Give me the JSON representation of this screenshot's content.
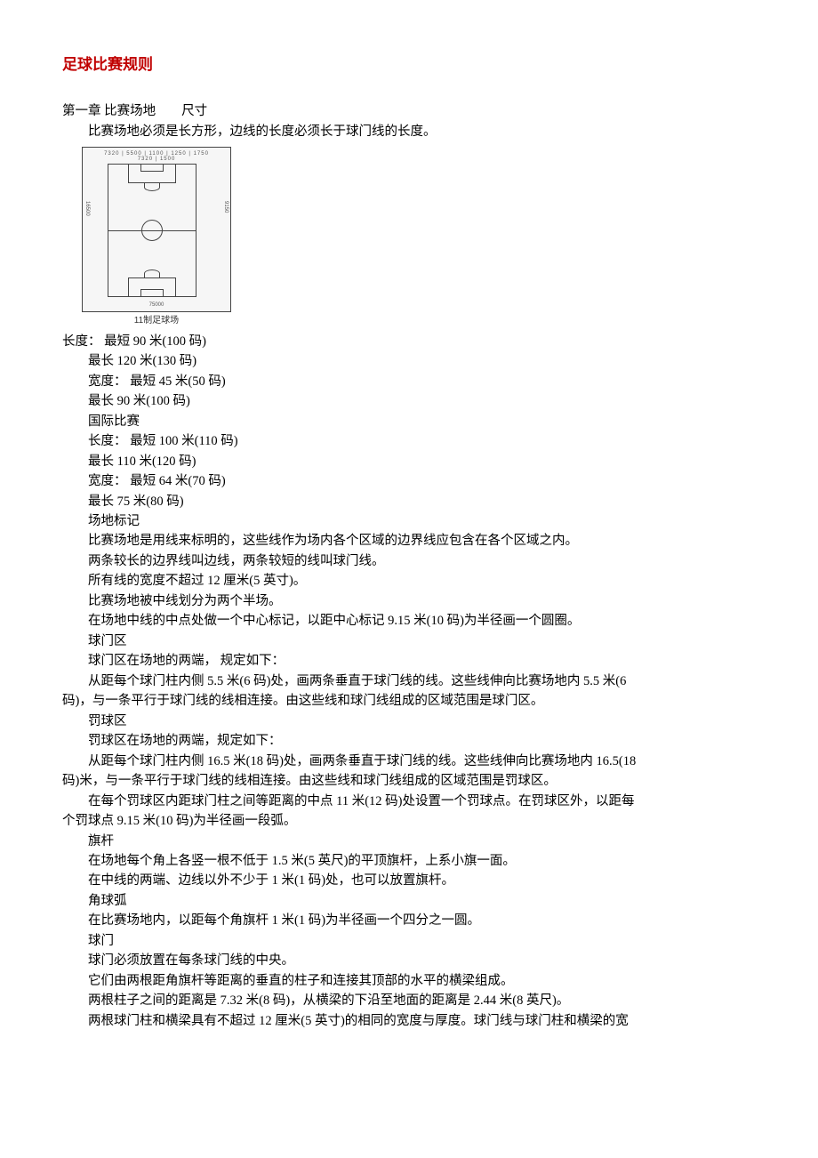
{
  "title": "足球比赛规则",
  "chapter_heading": "第一章 比赛场地　　尺寸",
  "intro": "比赛场地必须是长方形，边线的长度必须长于球门线的长度。",
  "diagram": {
    "caption": "11制足球场",
    "dim_top": "7320 | 5500 | 1100 | 1250 | 1750 7320 | 1500",
    "dim_left": "16500",
    "dim_right": "9150",
    "dim_bot": "75000"
  },
  "lines": [
    "长度：  最短 90 米(100 码)",
    "最长 120 米(130 码)",
    "宽度：  最短 45 米(50 码)",
    "最长 90 米(100 码)",
    "国际比赛",
    "长度：  最短 100 米(110 码)",
    "最长 110 米(120 码)",
    "宽度：  最短 64 米(70 码)",
    "最长 75 米(80 码)",
    "场地标记",
    "比赛场地是用线来标明的，这些线作为场内各个区域的边界线应包含在各个区域之内。",
    "两条较长的边界线叫边线，两条较短的线叫球门线。",
    "所有线的宽度不超过 12 厘米(5 英寸)。",
    "比赛场地被中线划分为两个半场。",
    "在场地中线的中点处做一个中心标记，以距中心标记 9.15 米(10 码)为半径画一个圆圈。",
    "球门区",
    "球门区在场地的两端，  规定如下：",
    "从距每个球门柱内侧 5.5 米(6 码)处，画两条垂直于球门线的线。这些线伸向比赛场地内 5.5 米(6",
    "罚球区",
    "罚球区在场地的两端，规定如下：",
    "从距每个球门柱内侧 16.5 米(18 码)处，画两条垂直于球门线的线。这些线伸向比赛场地内 16.5(18",
    "在每个罚球区内距球门柱之间等距离的中点 11 米(12 码)处设置一个罚球点。在罚球区外，以距每",
    "旗杆",
    "在场地每个角上各竖一根不低于 1.5 米(5 英尺)的平顶旗杆，上系小旗一面。",
    "在中线的两端、边线以外不少于 1 米(1 码)处，也可以放置旗杆。",
    "角球弧",
    "在比赛场地内，以距每个角旗杆 1 米(1 码)为半径画一个四分之一圆。",
    "球门",
    "球门必须放置在每条球门线的中央。",
    "它们由两根距角旗杆等距离的垂直的柱子和连接其顶部的水平的横梁组成。",
    "两根柱子之间的距离是 7.32 米(8 码)，从横梁的下沿至地面的距离是 2.44 米(8 英尺)。",
    "两根球门柱和横梁具有不超过 12 厘米(5 英寸)的相同的宽度与厚度。球门线与球门柱和横梁的宽"
  ],
  "noindent_after_17": "码)，与一条平行于球门线的线相连接。由这些线和球门线组成的区域范围是球门区。",
  "noindent_after_20": "码)米，与一条平行于球门线的线相连接。由这些线和球门线组成的区域范围是罚球区。",
  "noindent_after_21": "个罚球点 9.15 米(10 码)为半径画一段弧。"
}
